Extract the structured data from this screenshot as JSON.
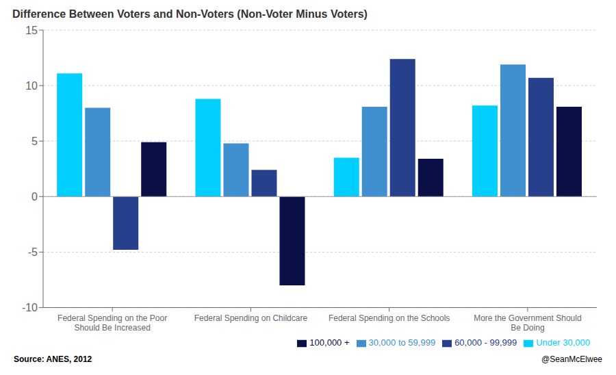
{
  "chart_data": {
    "type": "bar",
    "title": "Difference Between Voters and Non-Voters (Non-Voter Minus Voters)",
    "categories": [
      "Federal Spending on the Poor\nShould Be Increased",
      "Federal Spending on Childcare",
      "Federal Spending on the Schools",
      "More the Government Should\nBe Doing"
    ],
    "series": [
      {
        "name": "Under 30,000",
        "color": "#00CFFF",
        "values": [
          11.1,
          8.8,
          3.5,
          8.2
        ]
      },
      {
        "name": "30,000 to 59,999",
        "color": "#4090D0",
        "values": [
          8.0,
          4.8,
          8.1,
          11.9
        ]
      },
      {
        "name": "60,000 - 99,999",
        "color": "#27408B",
        "values": [
          -4.8,
          2.4,
          12.4,
          10.7
        ]
      },
      {
        "name": "100,000 +",
        "color": "#0A1045",
        "values": [
          4.9,
          -8.0,
          3.4,
          8.1
        ]
      }
    ],
    "ylim": [
      -10,
      15
    ],
    "yticks": [
      -10,
      -5,
      0,
      5,
      10,
      15
    ],
    "grid": true,
    "legend": "lower right",
    "annotations": [
      "Source: ANES, 2012",
      "@SeanMcElwee"
    ]
  }
}
